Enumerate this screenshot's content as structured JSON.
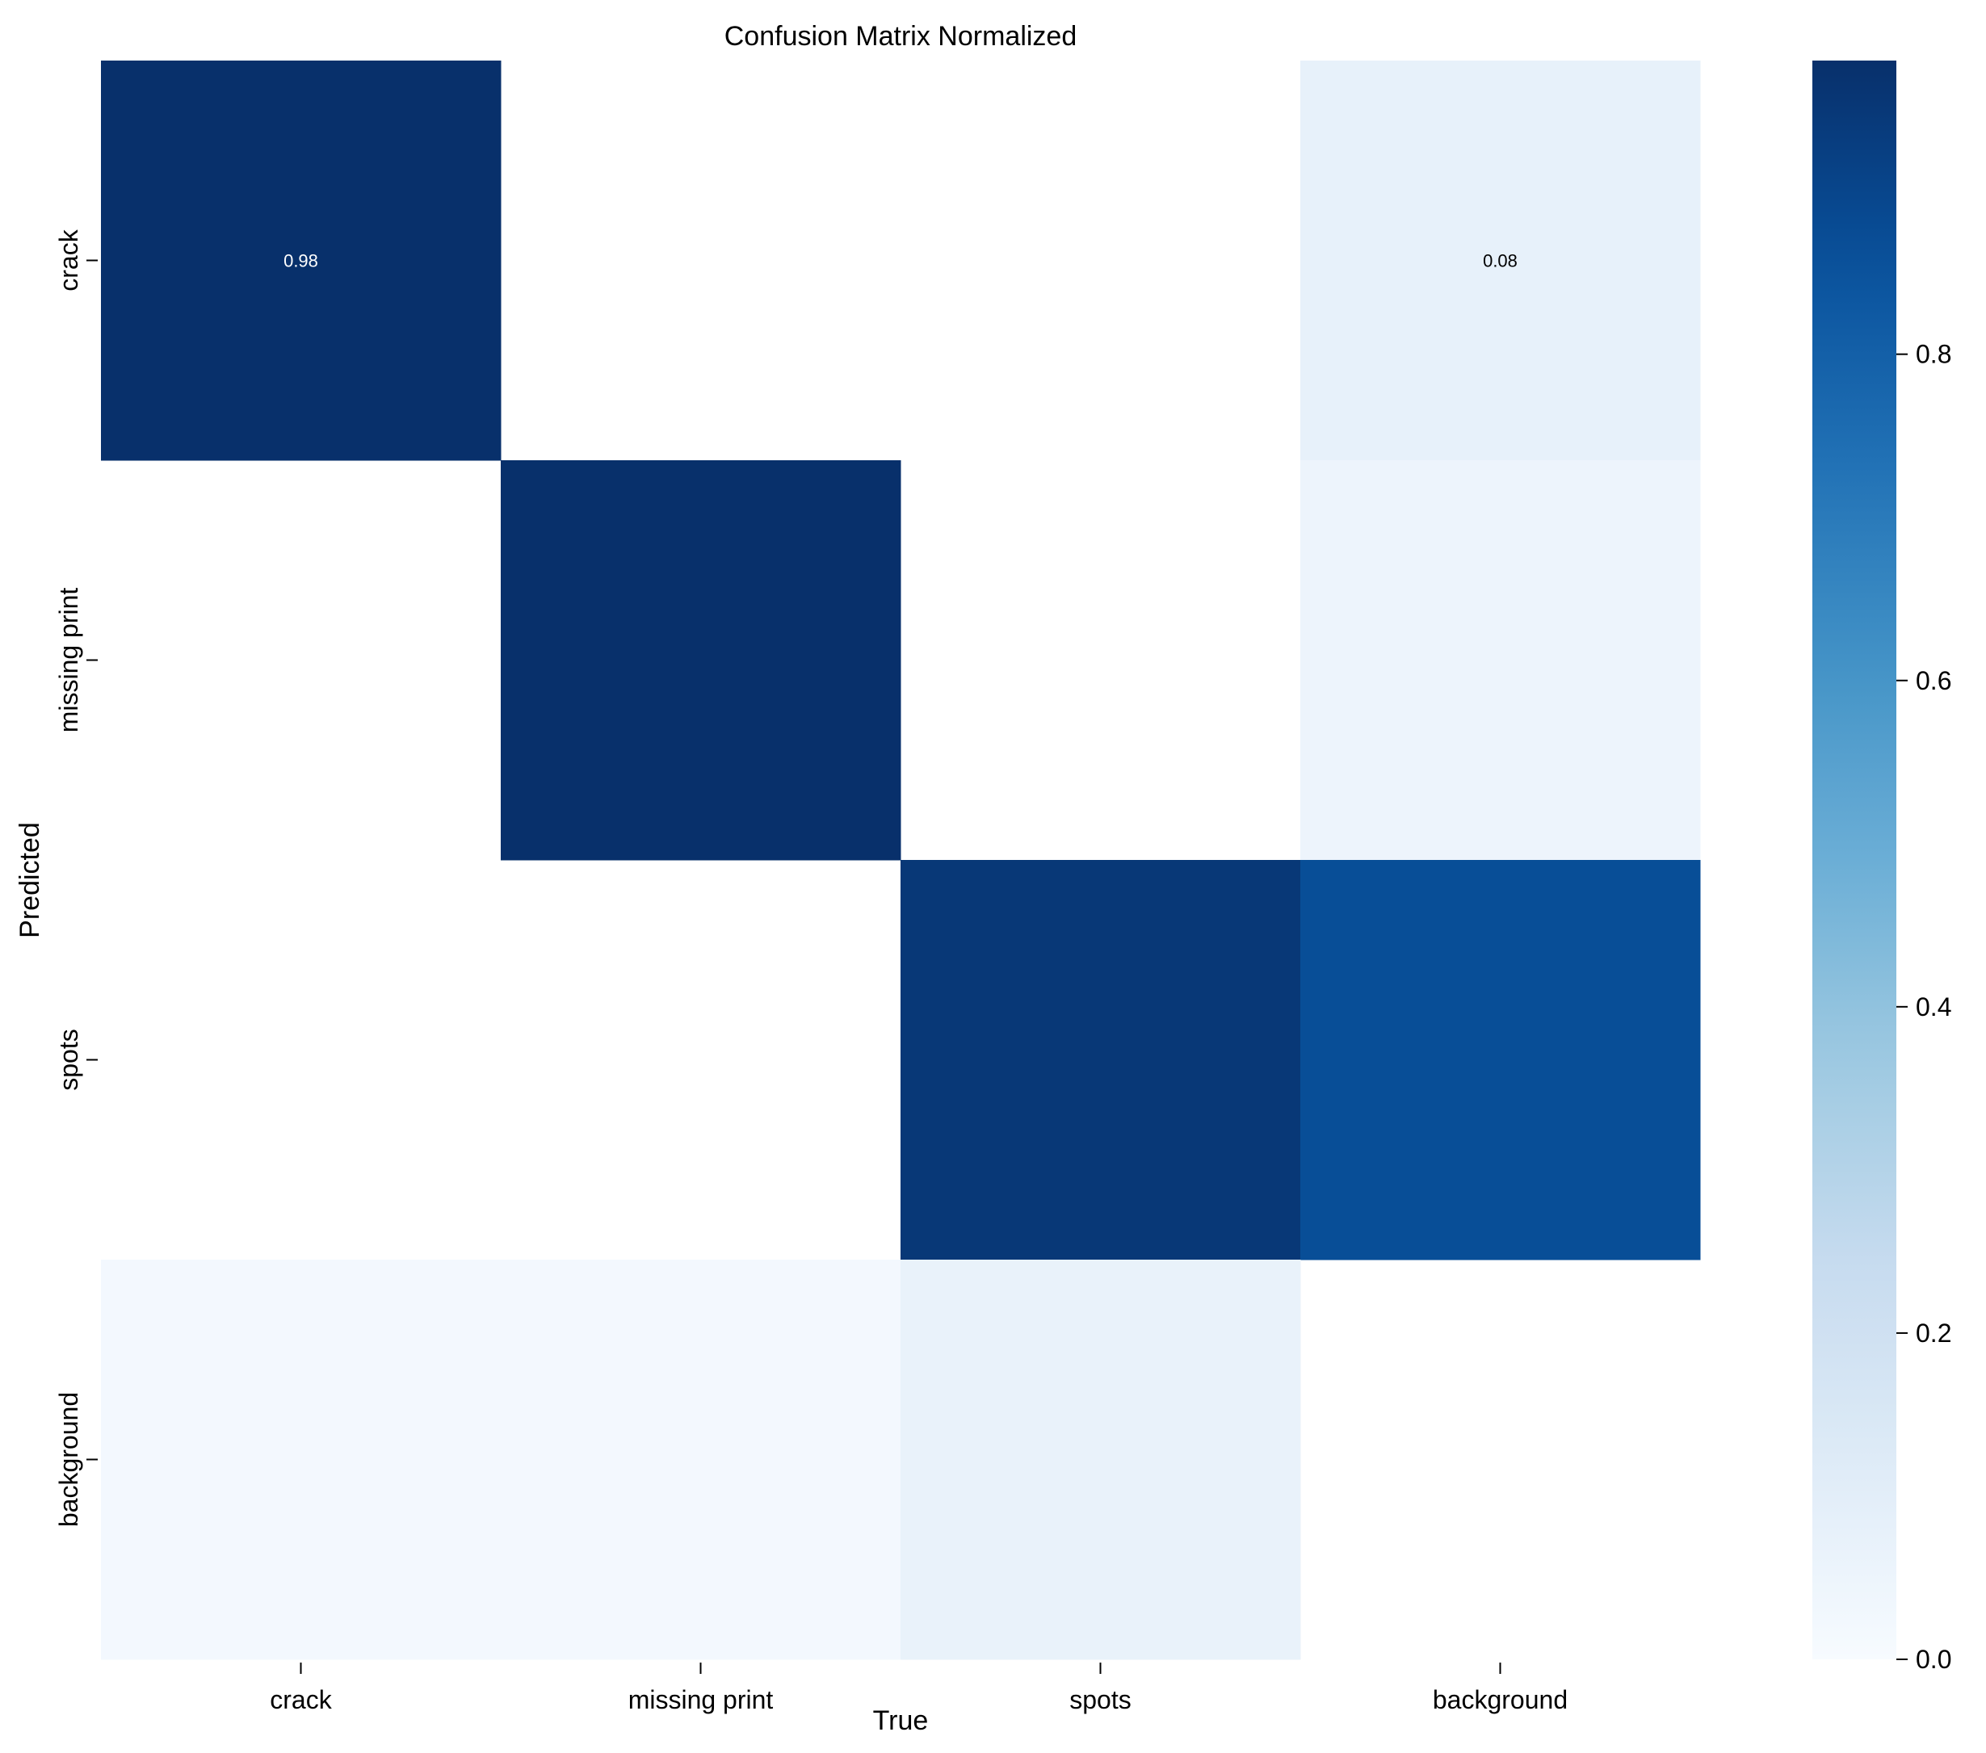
{
  "chart_data": {
    "type": "heatmap",
    "title": "Confusion Matrix Normalized",
    "xlabel": "True",
    "ylabel": "Predicted",
    "x_categories": [
      "crack",
      "missing print",
      "spots",
      "background"
    ],
    "y_categories": [
      "crack",
      "missing print",
      "spots",
      "background"
    ],
    "values": [
      [
        0.98,
        null,
        null,
        0.08
      ],
      [
        null,
        0.98,
        null,
        0.05
      ],
      [
        null,
        null,
        0.95,
        0.87
      ],
      [
        0.02,
        0.02,
        0.07,
        null
      ]
    ],
    "cell_labels": [
      [
        "0.98",
        "",
        "",
        "0.08"
      ],
      [
        "",
        "",
        "",
        ""
      ],
      [
        "",
        "",
        "",
        ""
      ],
      [
        "",
        "",
        "",
        ""
      ]
    ],
    "colormap": "Blues",
    "colorbar": {
      "range": [
        0,
        0.98
      ],
      "ticks": [
        0.0,
        0.2,
        0.4,
        0.6,
        0.8
      ],
      "tick_labels": [
        "0.0",
        "0.2",
        "0.4",
        "0.6",
        "0.8"
      ]
    },
    "grid": false
  }
}
